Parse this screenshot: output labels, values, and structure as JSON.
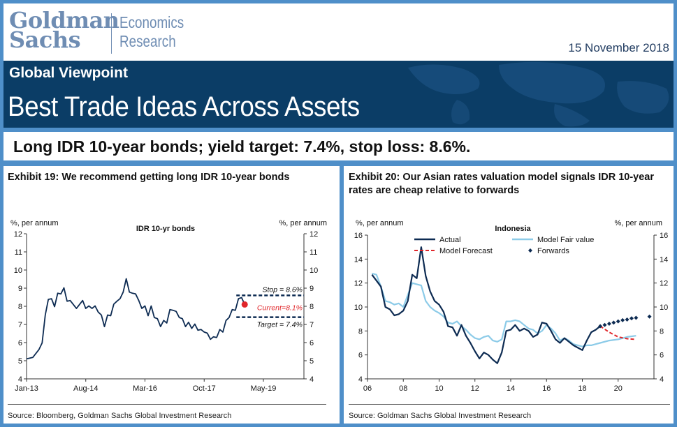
{
  "header": {
    "logo_line1": "Goldman",
    "logo_line2": "Sachs",
    "dept_line1": "Economics",
    "dept_line2": "Research",
    "date": "15 November 2018",
    "subtitle": "Global Viewpoint",
    "title": "Best Trade Ideas Across Assets"
  },
  "trade_idea": "Long IDR 10-year bonds; yield target: 7.4%, stop loss: 8.6%.",
  "colors": {
    "navy": "#0b3d66",
    "frame_blue": "#4f8fc9",
    "logo": "#6f8db3",
    "series_dark": "#0d2b52",
    "series_light": "#8ccbe8",
    "forecast_red": "#e0262a"
  },
  "exhibit19": {
    "title": "Exhibit 19: We recommend getting long IDR 10-year bonds",
    "source": "Source: Bloomberg, Goldman Sachs Global Investment Research"
  },
  "exhibit20": {
    "title_line1": "Exhibit 20: Our Asian rates valuation model signals IDR 10-year",
    "title_line2": "rates are cheap relative to forwards",
    "source": "Source: Goldman Sachs Global Investment Research"
  },
  "chart_data": [
    {
      "type": "line",
      "title": "IDR 10-yr bonds",
      "ylabel_left": "%, per annum",
      "ylabel_right": "%, per annum",
      "xlabel": "",
      "ylim": [
        4,
        12
      ],
      "yticks": [
        4,
        5,
        6,
        7,
        8,
        9,
        10,
        11,
        12
      ],
      "xtick_labels": [
        "Jan-13",
        "Aug-14",
        "Mar-16",
        "Oct-17",
        "May-19"
      ],
      "grid": false,
      "series": [
        {
          "x": [
            "2013-01",
            "2013-03",
            "2013-05",
            "2013-06",
            "2013-07",
            "2013-08",
            "2013-09",
            "2013-10",
            "2013-11",
            "2013-12",
            "2014-01",
            "2014-02",
            "2014-03",
            "2014-05",
            "2014-07",
            "2014-08",
            "2014-09",
            "2014-10",
            "2014-11",
            "2014-12",
            "2015-01",
            "2015-02",
            "2015-03",
            "2015-04",
            "2015-05",
            "2015-06",
            "2015-07",
            "2015-08",
            "2015-09",
            "2015-10",
            "2015-11",
            "2015-12",
            "2016-01",
            "2016-02",
            "2016-03",
            "2016-04",
            "2016-05",
            "2016-06",
            "2016-07",
            "2016-08",
            "2016-09",
            "2016-10",
            "2016-11",
            "2016-12",
            "2017-01",
            "2017-02",
            "2017-03",
            "2017-04",
            "2017-05",
            "2017-06",
            "2017-07",
            "2017-08",
            "2017-09",
            "2017-10",
            "2017-11",
            "2017-12",
            "2018-01",
            "2018-02",
            "2018-03",
            "2018-04",
            "2018-05",
            "2018-06",
            "2018-07",
            "2018-08",
            "2018-09",
            "2018-10",
            "2018-11"
          ],
          "values": [
            5.1,
            5.3,
            5.5,
            6.1,
            7.4,
            8.5,
            8.3,
            8.1,
            8.6,
            8.8,
            8.9,
            8.4,
            8.2,
            8.0,
            8.2,
            8.0,
            7.9,
            8.0,
            7.9,
            7.8,
            7.4,
            7.0,
            7.4,
            7.6,
            8.0,
            8.4,
            8.3,
            8.9,
            9.4,
            8.9,
            8.6,
            8.8,
            8.2,
            8.0,
            7.9,
            7.6,
            7.9,
            7.5,
            7.2,
            7.0,
            7.1,
            7.2,
            7.7,
            7.9,
            7.6,
            7.5,
            7.2,
            7.0,
            7.0,
            6.9,
            6.9,
            6.8,
            6.6,
            6.7,
            6.4,
            6.3,
            6.2,
            6.4,
            6.6,
            6.7,
            7.1,
            7.5,
            7.7,
            7.9,
            8.3,
            8.6,
            8.1
          ]
        }
      ],
      "annotations": [
        {
          "label": "Stop = 8.6%",
          "value": 8.6
        },
        {
          "label": "Current=8.1%",
          "value": 8.1
        },
        {
          "label": "Target = 7.4%",
          "value": 7.4
        }
      ]
    },
    {
      "type": "line",
      "title": "Indonesia",
      "ylabel_left": "%, per annum",
      "ylabel_right": "%, per annum",
      "xlabel": "",
      "ylim": [
        4,
        16
      ],
      "yticks": [
        4,
        6,
        8,
        10,
        12,
        14,
        16
      ],
      "xlim": [
        2006,
        2022
      ],
      "xticks": [
        2006,
        2008,
        2010,
        2012,
        2014,
        2016,
        2018,
        2020
      ],
      "xtick_labels": [
        "06",
        "08",
        "10",
        "12",
        "14",
        "16",
        "18",
        "20"
      ],
      "legend": "top",
      "grid": false,
      "series": [
        {
          "name": "Actual",
          "x": [
            2006.25,
            2006.5,
            2006.75,
            2007.0,
            2007.25,
            2007.5,
            2007.75,
            2008.0,
            2008.25,
            2008.5,
            2008.75,
            2009.0,
            2009.25,
            2009.5,
            2009.75,
            2010.0,
            2010.25,
            2010.5,
            2010.75,
            2011.0,
            2011.25,
            2011.5,
            2011.75,
            2012.0,
            2012.25,
            2012.5,
            2012.75,
            2013.0,
            2013.25,
            2013.5,
            2013.75,
            2014.0,
            2014.25,
            2014.5,
            2014.75,
            2015.0,
            2015.25,
            2015.5,
            2015.75,
            2016.0,
            2016.25,
            2016.5,
            2016.75,
            2017.0,
            2017.25,
            2017.5,
            2017.75,
            2018.0,
            2018.25,
            2018.5,
            2018.75,
            2019.0
          ],
          "values": [
            12.7,
            12.2,
            11.7,
            10.0,
            9.8,
            9.3,
            9.4,
            9.7,
            10.5,
            12.7,
            12.4,
            15.0,
            12.6,
            11.3,
            10.5,
            10.2,
            9.6,
            8.4,
            8.3,
            7.6,
            8.5,
            7.6,
            7.0,
            6.3,
            5.7,
            6.2,
            6.0,
            5.6,
            5.3,
            6.2,
            8.0,
            8.1,
            8.5,
            8.0,
            8.2,
            8.0,
            7.5,
            7.7,
            8.7,
            8.6,
            8.0,
            7.3,
            7.0,
            7.4,
            7.1,
            6.8,
            6.6,
            6.4,
            7.2,
            7.9,
            8.1,
            8.4
          ],
          "color": "#0d2b52"
        },
        {
          "name": "Model Fair value",
          "x": [
            2006.25,
            2006.5,
            2006.75,
            2007.0,
            2007.25,
            2007.5,
            2007.75,
            2008.0,
            2008.25,
            2008.5,
            2008.75,
            2009.0,
            2009.25,
            2009.5,
            2009.75,
            2010.0,
            2010.25,
            2010.5,
            2010.75,
            2011.0,
            2011.25,
            2011.5,
            2011.75,
            2012.0,
            2012.25,
            2012.5,
            2012.75,
            2013.0,
            2013.25,
            2013.5,
            2013.75,
            2014.0,
            2014.25,
            2014.5,
            2014.75,
            2015.0,
            2015.25,
            2015.5,
            2015.75,
            2016.0,
            2016.25,
            2016.5,
            2016.75,
            2017.0,
            2017.25,
            2017.5,
            2017.75,
            2018.0,
            2018.25,
            2018.5,
            2018.75,
            2019.0,
            2019.5,
            2020.0,
            2020.5,
            2021.0
          ],
          "values": [
            12.8,
            12.7,
            11.7,
            10.5,
            10.4,
            10.2,
            10.3,
            10.0,
            11.0,
            12.0,
            11.9,
            11.8,
            10.5,
            10.0,
            9.7,
            9.5,
            9.2,
            8.7,
            8.6,
            8.8,
            8.4,
            8.1,
            7.7,
            7.4,
            7.3,
            7.5,
            7.6,
            7.2,
            7.1,
            7.3,
            8.8,
            8.8,
            8.9,
            8.8,
            8.5,
            8.2,
            8.1,
            7.8,
            8.0,
            8.5,
            8.2,
            7.8,
            7.2,
            7.4,
            7.2,
            6.9,
            6.8,
            6.7,
            6.8,
            6.8,
            6.9,
            7.0,
            7.2,
            7.3,
            7.5,
            7.6
          ],
          "color": "#8ccbe8"
        },
        {
          "name": "Model Forecast",
          "x": [
            2019.0,
            2019.5,
            2020.0,
            2020.5,
            2021.0
          ],
          "values": [
            8.4,
            7.9,
            7.5,
            7.35,
            7.3
          ],
          "color": "#e0262a",
          "style": "dashed"
        },
        {
          "name": "Forwards",
          "x": [
            2019.0,
            2019.25,
            2019.5,
            2019.75,
            2020.0,
            2020.25,
            2020.5,
            2020.75,
            2021.0,
            2021.75
          ],
          "values": [
            8.4,
            8.5,
            8.6,
            8.7,
            8.8,
            8.9,
            8.95,
            9.05,
            9.1,
            9.2
          ],
          "color": "#0d2b52",
          "style": "markers"
        }
      ]
    }
  ]
}
